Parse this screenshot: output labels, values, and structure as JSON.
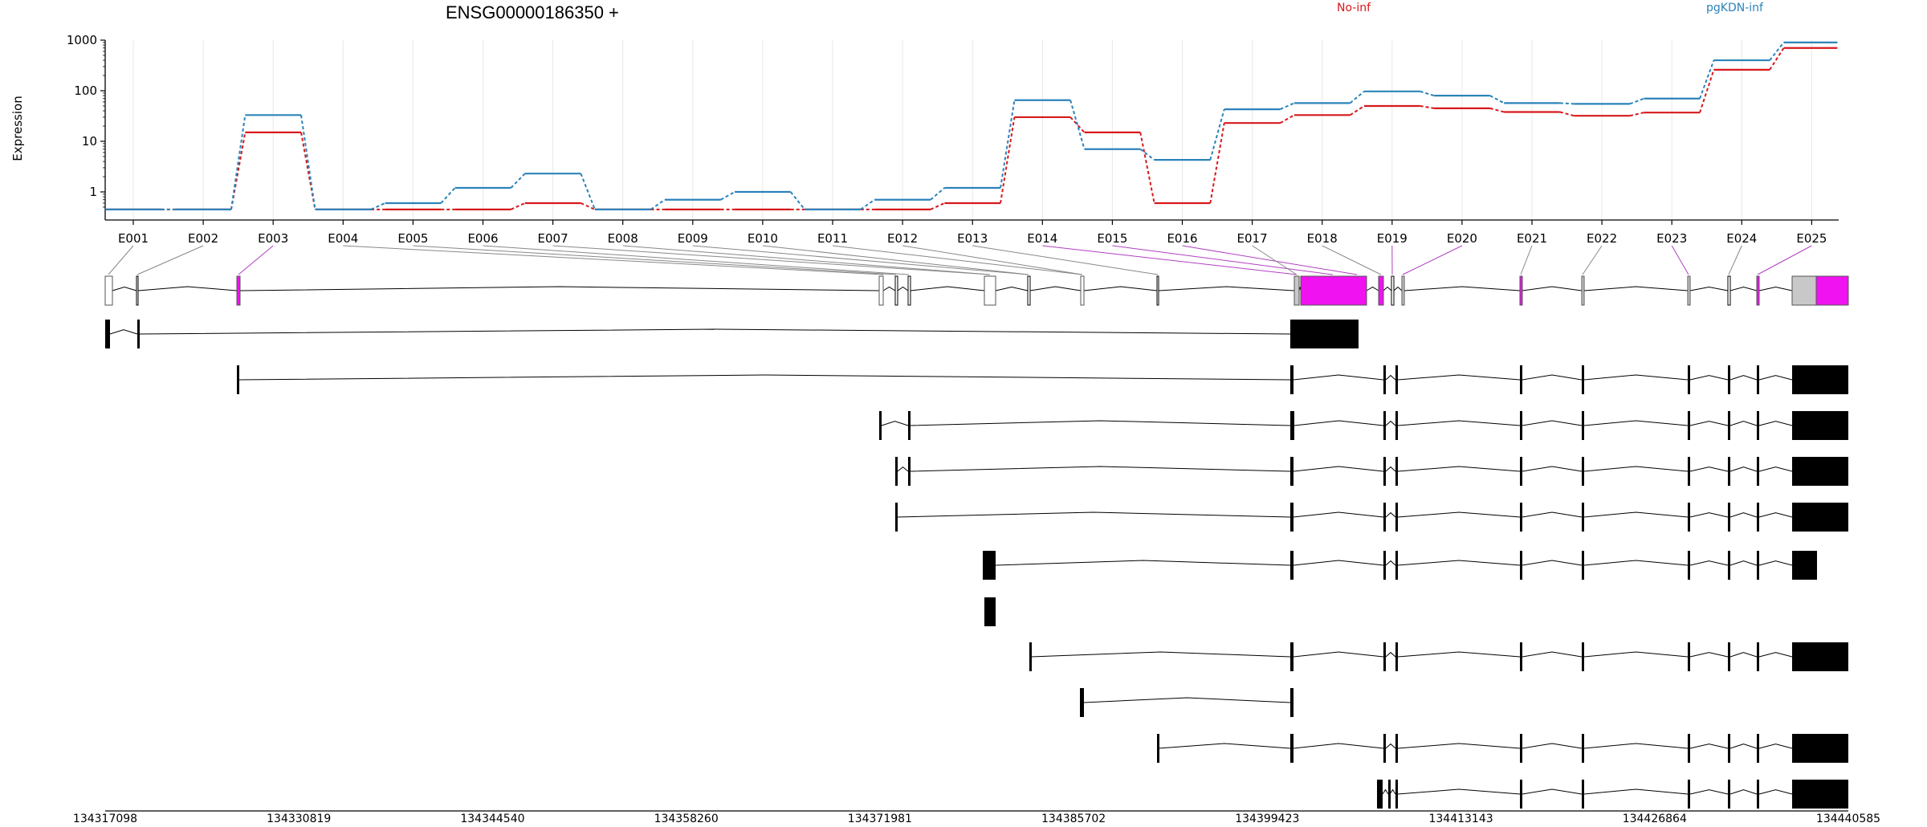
{
  "chart_data": {
    "type": "line",
    "title": "ENSG00000186350 +",
    "ylabel": "Expression",
    "yscale": "log",
    "yticks": [
      "1",
      "10",
      "100",
      "1000"
    ],
    "ylim": [
      0.45,
      1000
    ],
    "categories": [
      "E001",
      "E002",
      "E003",
      "E004",
      "E005",
      "E006",
      "E007",
      "E008",
      "E009",
      "E010",
      "E011",
      "E012",
      "E013",
      "E014",
      "E015",
      "E016",
      "E017",
      "E018",
      "E019",
      "E020",
      "E021",
      "E022",
      "E023",
      "E024",
      "E025"
    ],
    "series": [
      {
        "name": "No-inf",
        "color": "#d7191c",
        "values": [
          0.45,
          0.45,
          15,
          0.45,
          0.45,
          0.45,
          0.6,
          0.45,
          0.45,
          0.45,
          0.45,
          0.45,
          0.6,
          30,
          15,
          0.6,
          23,
          33,
          50,
          45,
          38,
          32,
          37,
          260,
          700
        ]
      },
      {
        "name": "pgKDN-inf",
        "color": "#2b83ba",
        "values": [
          0.45,
          0.45,
          33,
          0.45,
          0.6,
          1.2,
          2.3,
          0.45,
          0.7,
          1.0,
          0.45,
          0.7,
          1.2,
          65,
          7,
          4.3,
          43,
          57,
          97,
          80,
          57,
          55,
          70,
          400,
          900
        ]
      }
    ],
    "genomic_axis": {
      "labels": [
        "134317098",
        "134330819",
        "134344540",
        "134358260",
        "134371981",
        "134385702",
        "134399423",
        "134413143",
        "134426864",
        "134440585"
      ]
    },
    "transcript_count": 11,
    "colors": {
      "highlight": "#f012f0",
      "exon_gray": "#c8c8c8",
      "link_gray": "#888888",
      "link_purple": "#b040c0"
    }
  }
}
